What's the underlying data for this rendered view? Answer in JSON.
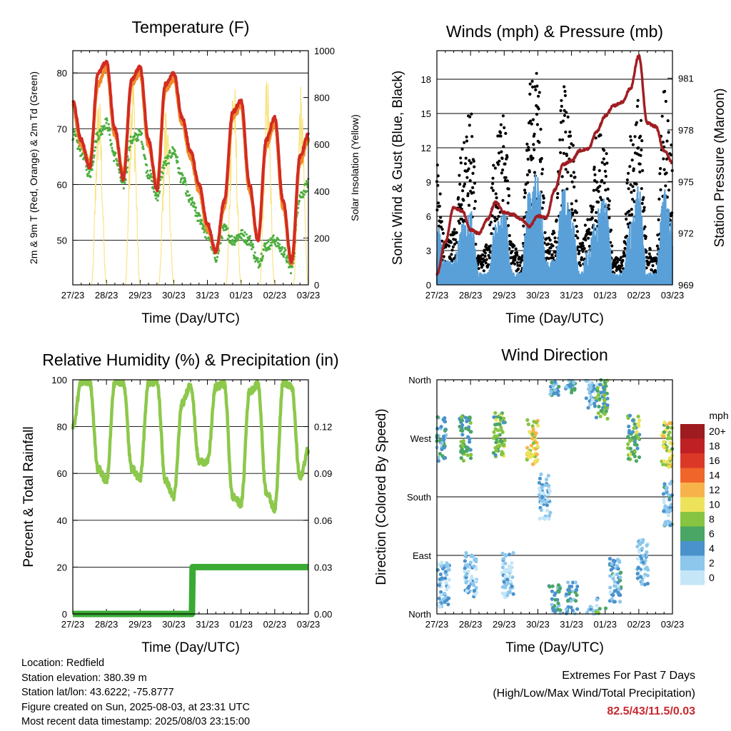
{
  "colors": {
    "temp": "#d22b22",
    "temp9": "#f08a2c",
    "dew": "#4cae3e",
    "solar": "#f8e27a",
    "wind": "#5aa0d8",
    "gust": "#000000",
    "pressure": "#a01e23",
    "rh": "#8cc84b",
    "precip": "#3aaa35",
    "grid": "#000000"
  },
  "days": [
    "27/23",
    "28/23",
    "29/23",
    "30/23",
    "31/23",
    "01/23",
    "02/23",
    "03/23"
  ],
  "footer": {
    "location": "Location: Redfield",
    "elevation": "Station elevation: 380.39 m",
    "latlon": "Station lat/lon: 43.6222; -75.8777",
    "created": "Figure created on Sun, 2025-08-03, at 23:31 UTC",
    "recent": "Most recent data timestamp: 2025/08/03 23:15:00",
    "extremes_title": "Extremes For Past 7 Days",
    "extremes_sub": "(High/Low/Max Wind/Total Precipitation)",
    "extremes_value": "82.5/43/11.5/0.03"
  },
  "chart_data": [
    {
      "type": "line",
      "title": "Temperature (F)",
      "xlabel": "Time (Day/UTC)",
      "ylabel": "2m & 9m T (Red, Orange) & 2m Td (Green)",
      "y2label": "Solar Insolation (Yellow)",
      "x": [
        0,
        0.25,
        0.5,
        0.75,
        1,
        1.25,
        1.5,
        1.75,
        2,
        2.25,
        2.5,
        2.75,
        3,
        3.25,
        3.5,
        3.75,
        4,
        4.25,
        4.5,
        4.75,
        5,
        5.25,
        5.5,
        5.75,
        6,
        6.25,
        6.5,
        6.75,
        7
      ],
      "xticks": [
        "27/23",
        "28/23",
        "29/23",
        "30/23",
        "31/23",
        "01/23",
        "02/23",
        "03/23"
      ],
      "ylim": [
        42,
        84
      ],
      "yticks": [
        50,
        60,
        70,
        80
      ],
      "y2lim": [
        0,
        1000
      ],
      "y2ticks": [
        0,
        200,
        400,
        600,
        800,
        1000
      ],
      "series": [
        {
          "name": "2m T",
          "axis": "left",
          "values": [
            75,
            68,
            63,
            80,
            82,
            70,
            61,
            79,
            81,
            68,
            59,
            78,
            80,
            72,
            66,
            60,
            53,
            48,
            57,
            73,
            75,
            60,
            50,
            68,
            72,
            57,
            46,
            65,
            69
          ]
        },
        {
          "name": "9m T",
          "axis": "left",
          "values": [
            74,
            67,
            64,
            78,
            81,
            69,
            62,
            78,
            80,
            67,
            60,
            77,
            79,
            71,
            65,
            59,
            52,
            48,
            56,
            72,
            74,
            59,
            50,
            67,
            71,
            56,
            46,
            64,
            68
          ]
        },
        {
          "name": "2m Td",
          "axis": "left",
          "values": [
            69,
            66,
            62,
            69,
            71,
            65,
            60,
            68,
            69,
            62,
            58,
            64,
            66,
            61,
            57,
            54,
            51,
            47,
            52,
            50,
            51,
            50,
            46,
            49,
            50,
            48,
            45,
            58,
            60
          ]
        },
        {
          "name": "Solar",
          "axis": "right",
          "values": [
            700,
            0,
            0,
            850,
            0,
            0,
            0,
            980,
            0,
            0,
            0,
            800,
            0,
            0,
            0,
            0,
            120,
            0,
            0,
            950,
            0,
            0,
            0,
            920,
            0,
            0,
            0,
            850,
            0
          ]
        }
      ]
    },
    {
      "type": "scatter",
      "title": "Winds (mph) & Pressure (mb)",
      "xlabel": "Time (Day/UTC)",
      "ylabel": "Sonic Wind & Gust (Blue, Black)",
      "y2label": "Station Pressure (Maroon)",
      "x": [
        0,
        0.25,
        0.5,
        0.75,
        1,
        1.25,
        1.5,
        1.75,
        2,
        2.25,
        2.5,
        2.75,
        3,
        3.25,
        3.5,
        3.75,
        4,
        4.25,
        4.5,
        4.75,
        5,
        5.25,
        5.5,
        5.75,
        6,
        6.25,
        6.5,
        6.75,
        7
      ],
      "xticks": [
        "27/23",
        "28/23",
        "29/23",
        "30/23",
        "31/23",
        "01/23",
        "02/23",
        "03/23"
      ],
      "ylim": [
        0,
        20.5
      ],
      "yticks": [
        0,
        3,
        6,
        9,
        12,
        15,
        18
      ],
      "y2lim": [
        969,
        982.6
      ],
      "y2ticks": [
        969,
        972,
        975,
        978,
        981
      ],
      "series": [
        {
          "name": "Wind",
          "axis": "left",
          "values": [
            5,
            2,
            2,
            5,
            6,
            1,
            1,
            5,
            6,
            1,
            1,
            8,
            9,
            2,
            2,
            8,
            6,
            1,
            3,
            6,
            7,
            1,
            1,
            5,
            8,
            1,
            1,
            8,
            5
          ]
        },
        {
          "name": "Gust",
          "axis": "left",
          "values": [
            9,
            3,
            4,
            10,
            13,
            2,
            3,
            11,
            13,
            3,
            2,
            15,
            16,
            4,
            4,
            15,
            11,
            3,
            5,
            11,
            12,
            2,
            2,
            11,
            14,
            3,
            2,
            15,
            10
          ]
        },
        {
          "name": "Pressure",
          "axis": "right",
          "values": [
            969.6,
            971.5,
            973.5,
            973.3,
            972.2,
            972.0,
            972.8,
            973.8,
            973.2,
            973.1,
            972.8,
            972.4,
            973.0,
            972.9,
            974.5,
            976.0,
            976.2,
            976.8,
            976.9,
            977.9,
            978.8,
            979.4,
            979.6,
            980.4,
            982.3,
            978.4,
            978.2,
            976.8,
            976.1
          ]
        }
      ]
    },
    {
      "type": "line",
      "title": "Relative Humidity (%) & Precipitation (in)",
      "xlabel": "Time (Day/UTC)",
      "ylabel": "Percent & Total Rainfall",
      "x": [
        0,
        0.25,
        0.5,
        0.75,
        1,
        1.25,
        1.5,
        1.75,
        2,
        2.25,
        2.5,
        2.75,
        3,
        3.25,
        3.5,
        3.75,
        4,
        4.25,
        4.5,
        4.75,
        5,
        5.25,
        5.5,
        5.75,
        6,
        6.25,
        6.5,
        6.75,
        7
      ],
      "xticks": [
        "27/23",
        "28/23",
        "29/23",
        "30/23",
        "31/23",
        "01/23",
        "02/23",
        "03/23"
      ],
      "ylim": [
        0,
        100
      ],
      "yticks": [
        0,
        20,
        40,
        60,
        80,
        100
      ],
      "y2lim": [
        0,
        0.15
      ],
      "y2ticks": [
        "0.00",
        "0.03",
        "0.06",
        "0.09",
        "0.12"
      ],
      "series": [
        {
          "name": "RH",
          "axis": "left",
          "values": [
            80,
            99,
            99,
            62,
            57,
            99,
            99,
            62,
            58,
            99,
            99,
            57,
            50,
            90,
            98,
            65,
            65,
            97,
            98,
            50,
            47,
            95,
            98,
            52,
            45,
            99,
            97,
            58,
            70
          ]
        },
        {
          "name": "Precipitation",
          "axis": "right",
          "values": [
            0,
            0,
            0,
            0,
            0,
            0,
            0,
            0,
            0,
            0,
            0,
            0,
            0,
            0,
            0.03,
            0.03,
            0.03,
            0.03,
            0.03,
            0.03,
            0.03,
            0.03,
            0.03,
            0.03,
            0.03,
            0.03,
            0.03,
            0.03,
            0.03
          ]
        }
      ]
    },
    {
      "type": "scatter",
      "title": "Wind Direction",
      "xlabel": "Time (Day/UTC)",
      "ylabel": "Direction (Colored By Speed)",
      "xticks": [
        "27/23",
        "28/23",
        "29/23",
        "30/23",
        "31/23",
        "01/23",
        "02/23",
        "03/23"
      ],
      "yticks": [
        "North",
        "East",
        "South",
        "West",
        "North"
      ],
      "legend_title": "mph",
      "legend_labels": [
        "0",
        "2",
        "4",
        "6",
        "8",
        "10",
        "12",
        "14",
        "16",
        "18",
        "20+"
      ],
      "legend_colors": [
        "#c4e6f7",
        "#8dc7ec",
        "#4a92cc",
        "#4aa664",
        "#86c441",
        "#ede35a",
        "#f8b24a",
        "#f0652a",
        "#dc3828",
        "#be2024",
        "#9e1b1f"
      ],
      "legend_position": "right",
      "clusters": [
        {
          "x": 0.1,
          "dir": 270,
          "speed": 4
        },
        {
          "x": 0.2,
          "dir": 45,
          "speed": 2
        },
        {
          "x": 0.85,
          "dir": 270,
          "speed": 6
        },
        {
          "x": 1.0,
          "dir": 60,
          "speed": 2
        },
        {
          "x": 1.85,
          "dir": 275,
          "speed": 7
        },
        {
          "x": 2.1,
          "dir": 60,
          "speed": 2
        },
        {
          "x": 2.85,
          "dir": 265,
          "speed": 10
        },
        {
          "x": 3.2,
          "dir": 180,
          "speed": 2
        },
        {
          "x": 3.5,
          "dir": 10,
          "speed": 4
        },
        {
          "x": 4.0,
          "dir": 15,
          "speed": 4
        },
        {
          "x": 4.6,
          "dir": 350,
          "speed": 2
        },
        {
          "x": 4.9,
          "dir": 335,
          "speed": 6
        },
        {
          "x": 5.3,
          "dir": 50,
          "speed": 3
        },
        {
          "x": 5.85,
          "dir": 270,
          "speed": 7
        },
        {
          "x": 6.1,
          "dir": 80,
          "speed": 2
        },
        {
          "x": 6.85,
          "dir": 260,
          "speed": 9
        },
        {
          "x": 6.9,
          "dir": 170,
          "speed": 3
        }
      ]
    }
  ]
}
